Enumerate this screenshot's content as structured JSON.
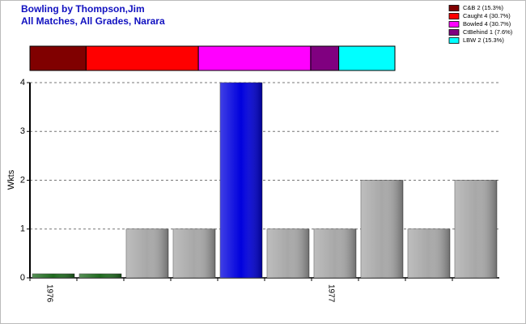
{
  "chart_data": [
    {
      "type": "stacked-bar",
      "series": [
        {
          "name": "C&B 2 (15.3%)",
          "color": "#800000",
          "values": [
            2
          ]
        },
        {
          "name": "Caught 4 (30.7%)",
          "color": "#ff0000",
          "values": [
            4
          ]
        },
        {
          "name": "Bowled 4 (30.7%)",
          "color": "#ff00ff",
          "values": [
            4
          ]
        },
        {
          "name": "CtBehind 1 (7.6%)",
          "color": "#800080",
          "values": [
            1
          ]
        },
        {
          "name": "LBW 2 (15.3%)",
          "color": "#00ffff",
          "values": [
            2
          ]
        }
      ],
      "legend": "top-right"
    },
    {
      "type": "bar",
      "title": "Bowling by Thompson,Jim",
      "subtitle": "All Matches, All Grades, Narara",
      "y_label": "Wkts",
      "categories": [
        "1976",
        null,
        null,
        null,
        null,
        null,
        "1977",
        null,
        null,
        null
      ],
      "values": [
        0,
        0,
        1,
        1,
        4,
        1,
        1,
        2,
        1,
        2
      ],
      "colors": [
        "#1e6b1e",
        "#1e6b1e",
        "#a8a8a8",
        "#a8a8a8",
        "#0000dd",
        "#a8a8a8",
        "#a8a8a8",
        "#a8a8a8",
        "#a8a8a8",
        "#a8a8a8"
      ],
      "ylim": [
        0,
        4
      ],
      "yticks": [
        0,
        1,
        2,
        3,
        4
      ],
      "grid": true
    }
  ]
}
